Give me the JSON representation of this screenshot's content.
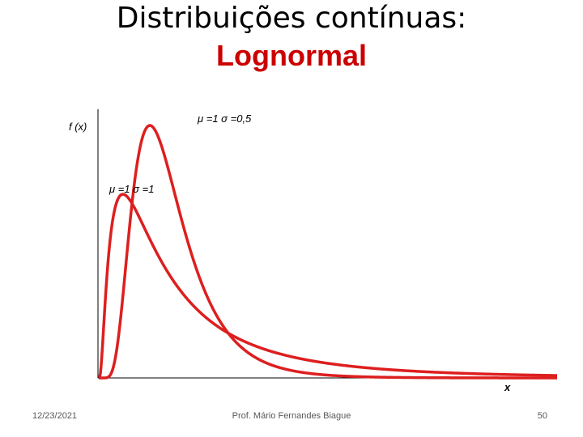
{
  "slide": {
    "title_line1": "Distribuições contínuas:",
    "title_line2": "Lognormal",
    "title_color": "#cc0000"
  },
  "chart_data": {
    "type": "line",
    "ylabel": "f (x)",
    "xlabel": "x",
    "series": [
      {
        "name": "μ =1 σ =0,5",
        "mu": 1,
        "sigma": 0.5,
        "color": "#dd1f1f"
      },
      {
        "name": "μ =1 σ =1",
        "mu": 1,
        "sigma": 1,
        "color": "#dd1f1f"
      }
    ],
    "grid": false,
    "legend": "labels next to curves"
  },
  "footer": {
    "date": "12/23/2021",
    "author": "Prof. Mário Fernandes Biague",
    "page": "50"
  }
}
